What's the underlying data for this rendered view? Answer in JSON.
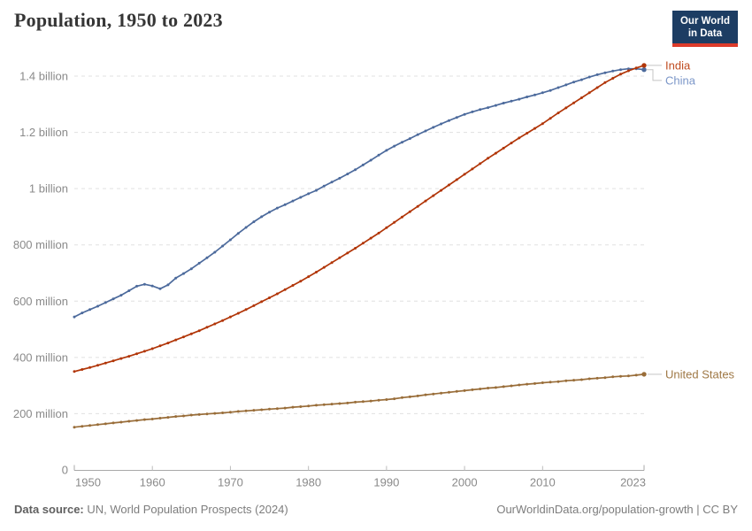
{
  "header": {
    "title": "Population, 1950 to 2023"
  },
  "logo": {
    "line1": "Our World",
    "line2": "in Data",
    "bg_color": "#1d3d63",
    "accent_color": "#dc3b2b"
  },
  "chart_data": {
    "type": "line",
    "title": "Population, 1950 to 2023",
    "xlabel": "",
    "ylabel": "",
    "unit": "people (millions)",
    "grid": "horizontal-dashed",
    "legend_position": "right-end-labels",
    "xlim": [
      1950,
      2023
    ],
    "ylim": [
      0,
      1450
    ],
    "x_ticks": [
      1950,
      1960,
      1970,
      1980,
      1990,
      2000,
      2010,
      2023
    ],
    "y_ticks": [
      {
        "value": 0,
        "label": "0"
      },
      {
        "value": 200,
        "label": "200 million"
      },
      {
        "value": 400,
        "label": "400 million"
      },
      {
        "value": 600,
        "label": "600 million"
      },
      {
        "value": 800,
        "label": "800 million"
      },
      {
        "value": 1000,
        "label": "1 billion"
      },
      {
        "value": 1200,
        "label": "1.2 billion"
      },
      {
        "value": 1400,
        "label": "1.4 billion"
      }
    ],
    "x": [
      1950,
      1951,
      1952,
      1953,
      1954,
      1955,
      1956,
      1957,
      1958,
      1959,
      1960,
      1961,
      1962,
      1963,
      1964,
      1965,
      1966,
      1967,
      1968,
      1969,
      1970,
      1971,
      1972,
      1973,
      1974,
      1975,
      1976,
      1977,
      1978,
      1979,
      1980,
      1981,
      1982,
      1983,
      1984,
      1985,
      1986,
      1987,
      1988,
      1989,
      1990,
      1991,
      1992,
      1993,
      1994,
      1995,
      1996,
      1997,
      1998,
      1999,
      2000,
      2001,
      2002,
      2003,
      2004,
      2005,
      2006,
      2007,
      2008,
      2009,
      2010,
      2011,
      2012,
      2013,
      2014,
      2015,
      2016,
      2017,
      2018,
      2019,
      2020,
      2021,
      2022,
      2023
    ],
    "series": [
      {
        "name": "India",
        "color": "#b13507",
        "label_color": "#bf4b1f",
        "values": [
          350,
          357,
          364,
          372,
          380,
          388,
          396,
          404,
          413,
          422,
          431,
          441,
          451,
          462,
          473,
          484,
          495,
          507,
          519,
          531,
          544,
          557,
          570,
          584,
          598,
          612,
          626,
          641,
          656,
          671,
          687,
          703,
          720,
          737,
          754,
          771,
          788,
          806,
          824,
          842,
          861,
          880,
          899,
          918,
          937,
          956,
          975,
          994,
          1013,
          1032,
          1051,
          1070,
          1089,
          1108,
          1126,
          1144,
          1162,
          1180,
          1197,
          1214,
          1231,
          1250,
          1269,
          1287,
          1305,
          1323,
          1341,
          1359,
          1377,
          1392,
          1407,
          1419,
          1429,
          1438
        ]
      },
      {
        "name": "China",
        "color": "#4c6a9c",
        "label_color": "#7b96c8",
        "values": [
          544,
          558,
          570,
          582,
          595,
          608,
          621,
          637,
          653,
          660,
          654,
          644,
          658,
          682,
          698,
          715,
          735,
          754,
          774,
          796,
          818,
          841,
          862,
          882,
          900,
          916,
          931,
          943,
          956,
          969,
          982,
          994,
          1009,
          1023,
          1037,
          1052,
          1067,
          1084,
          1101,
          1119,
          1136,
          1151,
          1165,
          1178,
          1192,
          1205,
          1218,
          1230,
          1242,
          1253,
          1264,
          1273,
          1281,
          1288,
          1296,
          1304,
          1311,
          1318,
          1326,
          1333,
          1341,
          1349,
          1359,
          1369,
          1379,
          1387,
          1397,
          1405,
          1412,
          1418,
          1423,
          1426,
          1426,
          1423
        ]
      },
      {
        "name": "United States",
        "color": "#996d39",
        "label_color": "#9f7845",
        "values": [
          152,
          155,
          158,
          161,
          164,
          167,
          170,
          173,
          176,
          179,
          181,
          184,
          187,
          190,
          192,
          195,
          197,
          199,
          201,
          203,
          205,
          208,
          210,
          212,
          214,
          216,
          218,
          220,
          223,
          225,
          227,
          230,
          232,
          234,
          236,
          238,
          241,
          243,
          245,
          248,
          250,
          253,
          257,
          260,
          263,
          267,
          270,
          273,
          276,
          279,
          282,
          285,
          288,
          291,
          293,
          296,
          299,
          302,
          305,
          307,
          310,
          312,
          314,
          317,
          319,
          321,
          324,
          326,
          328,
          331,
          333,
          334,
          337,
          340
        ]
      }
    ],
    "grid_color": "#e0e0e0",
    "axis_color": "#a8a8a8",
    "tick_label_color": "#8a8a8a"
  },
  "footer": {
    "source_label": "Data source:",
    "source_text": "UN, World Population Prospects (2024)",
    "right_text": "OurWorldinData.org/population-growth | CC BY"
  }
}
